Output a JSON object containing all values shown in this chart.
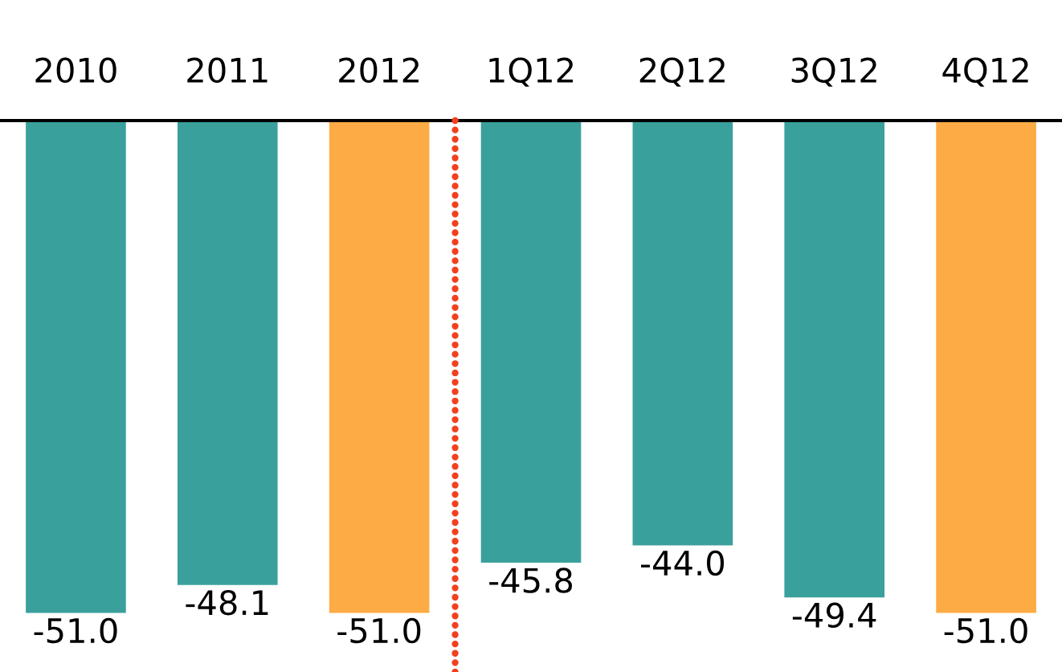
{
  "chart_data": {
    "type": "bar",
    "categories": [
      "2010",
      "2011",
      "2012",
      "1Q12",
      "2Q12",
      "3Q12",
      "4Q12"
    ],
    "values": [
      -51.0,
      -48.1,
      -51.0,
      -45.8,
      -44.0,
      -49.4,
      -51.0
    ],
    "value_labels": [
      "-51.0",
      "-48.1",
      "-51.0",
      "-45.8",
      "-44.0",
      "-49.4",
      "-51.0"
    ],
    "colors": [
      "#3aa09c",
      "#3aa09c",
      "#fdab45",
      "#3aa09c",
      "#3aa09c",
      "#3aa09c",
      "#fdab45"
    ],
    "grid": false,
    "legend": false
  }
}
